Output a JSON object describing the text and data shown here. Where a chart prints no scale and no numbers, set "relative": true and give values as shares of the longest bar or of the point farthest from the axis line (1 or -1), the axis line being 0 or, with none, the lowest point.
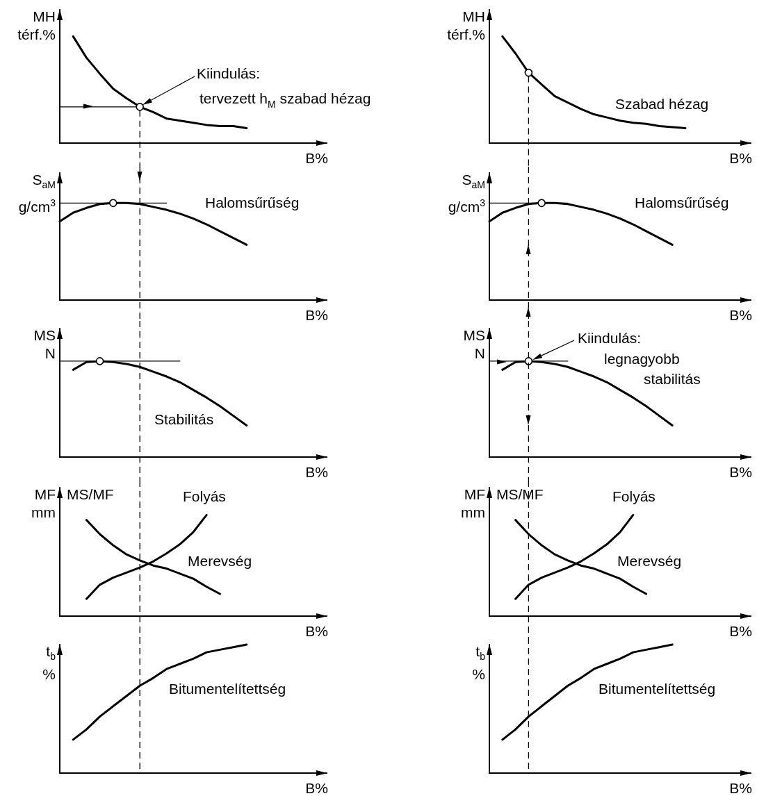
{
  "chart_data": [
    {
      "type": "line",
      "relative": true,
      "tick_labels": false,
      "marker": "none",
      "line_style": "solid",
      "ylabel": "MH\ntérf.%",
      "xlabel": "B%",
      "categories": [
        null,
        null,
        null,
        null,
        null,
        null,
        null,
        null,
        null,
        null,
        null,
        null,
        null,
        null,
        null,
        null,
        null,
        null,
        null,
        null,
        null
      ],
      "annotations": [
        "Kiindulás:",
        "tervezett h$_{M}$ szabad hézag"
      ],
      "series": [
        {
          "color": "#000000",
          "values": [
            null,
            1,
            0.8,
            0.65,
            0.51,
            0.42,
            0.34,
            0.29,
            0.23,
            0.21,
            0.19,
            0.17,
            0.16,
            0.16,
            0.14,
            null,
            null,
            null,
            null,
            null,
            null
          ]
        },
        {
          "color": "#000000",
          "values": [
            0.34,
            0.34,
            0.34,
            0.34,
            0.34,
            0.34,
            0.34,
            null,
            null,
            null,
            null,
            null,
            null,
            null,
            null,
            null,
            null,
            null,
            null,
            null,
            null
          ]
        },
        {
          "marker": "circle",
          "color": "#000000",
          "values": [
            null,
            null,
            null,
            null,
            null,
            null,
            0.34,
            null,
            null,
            null,
            null,
            null,
            null,
            null,
            null,
            null,
            null,
            null,
            null,
            null,
            null
          ]
        }
      ]
    },
    {
      "type": "line",
      "relative": true,
      "tick_labels": false,
      "marker": "none",
      "line_style": "solid",
      "ylabel": "MH\ntérf.%",
      "xlabel": "B%",
      "categories": [
        null,
        null,
        null,
        null,
        null,
        null,
        null,
        null,
        null,
        null,
        null,
        null,
        null,
        null,
        null,
        null,
        null,
        null,
        null,
        null,
        null
      ],
      "series": [
        {
          "name": "Szabad hézag",
          "color": "#000000",
          "values": [
            null,
            1,
            0.84,
            0.66,
            0.55,
            0.44,
            0.38,
            0.32,
            0.27,
            0.24,
            0.21,
            0.19,
            0.18,
            0.16,
            0.15,
            0.14,
            null,
            null,
            null,
            null,
            null
          ]
        },
        {
          "marker": "circle",
          "color": "#000000",
          "values": [
            null,
            null,
            null,
            0.66,
            null,
            null,
            null,
            null,
            null,
            null,
            null,
            null,
            null,
            null,
            null,
            null,
            null,
            null,
            null,
            null,
            null
          ]
        }
      ]
    },
    {
      "type": "line",
      "relative": true,
      "tick_labels": false,
      "marker": "none",
      "line_style": "solid",
      "ylabel": "S$_{aM}$\ng/cm$^{3}$",
      "xlabel": "B%",
      "categories": [
        null,
        null,
        null,
        null,
        null,
        null,
        null,
        null,
        null,
        null,
        null,
        null,
        null,
        null,
        null,
        null,
        null,
        null,
        null,
        null,
        null
      ],
      "series": [
        {
          "name": "Halomsűrűség",
          "color": "#000000",
          "values": [
            0.81,
            0.9,
            0.95,
            0.99,
            1,
            1,
            0.99,
            0.96,
            0.93,
            0.89,
            0.84,
            0.78,
            0.71,
            0.64,
            0.57,
            null,
            null,
            null,
            null,
            null,
            null
          ]
        },
        {
          "color": "#000000",
          "values": [
            1,
            1,
            1,
            1,
            1,
            1,
            1,
            1,
            1,
            null,
            null,
            null,
            null,
            null,
            null,
            null,
            null,
            null,
            null,
            null,
            null
          ]
        },
        {
          "marker": "circle",
          "color": "#000000",
          "values": [
            null,
            null,
            null,
            null,
            1,
            null,
            null,
            null,
            null,
            null,
            null,
            null,
            null,
            null,
            null,
            null,
            null,
            null,
            null,
            null,
            null
          ]
        }
      ]
    },
    {
      "type": "line",
      "relative": true,
      "tick_labels": false,
      "marker": "none",
      "line_style": "solid",
      "ylabel": "S$_{aM}$\ng/cm$^{3}$",
      "xlabel": "B%",
      "categories": [
        null,
        null,
        null,
        null,
        null,
        null,
        null,
        null,
        null,
        null,
        null,
        null,
        null,
        null,
        null,
        null,
        null,
        null,
        null,
        null,
        null
      ],
      "series": [
        {
          "name": "Halomsűrűség",
          "color": "#000000",
          "values": [
            0.81,
            0.9,
            0.95,
            0.99,
            1,
            1,
            0.99,
            0.96,
            0.93,
            0.89,
            0.84,
            0.78,
            0.71,
            0.64,
            0.57,
            null,
            null,
            null,
            null,
            null,
            null
          ]
        },
        {
          "color": "#000000",
          "values": [
            1,
            1,
            1,
            1,
            1,
            1,
            1,
            null,
            null,
            null,
            null,
            null,
            null,
            null,
            null,
            null,
            null,
            null,
            null,
            null,
            null
          ]
        },
        {
          "marker": "circle",
          "color": "#000000",
          "values": [
            null,
            null,
            null,
            null,
            1,
            null,
            null,
            null,
            null,
            null,
            null,
            null,
            null,
            null,
            null,
            null,
            null,
            null,
            null,
            null,
            null
          ]
        }
      ]
    },
    {
      "type": "line",
      "relative": true,
      "tick_labels": false,
      "marker": "none",
      "line_style": "solid",
      "ylabel": "MS\nN",
      "xlabel": "B%",
      "categories": [
        null,
        null,
        null,
        null,
        null,
        null,
        null,
        null,
        null,
        null,
        null,
        null,
        null,
        null,
        null,
        null,
        null,
        null,
        null,
        null,
        null
      ],
      "series": [
        {
          "name": "Stabilitás",
          "color": "#000000",
          "values": [
            null,
            0.91,
            0.99,
            1,
            0.99,
            0.97,
            0.94,
            0.89,
            0.84,
            0.78,
            0.7,
            0.62,
            0.53,
            0.43,
            0.33,
            null,
            null,
            null,
            null,
            null,
            null
          ]
        },
        {
          "color": "#000000",
          "values": [
            1,
            1,
            1,
            1,
            1,
            1,
            1,
            1,
            1,
            1,
            null,
            null,
            null,
            null,
            null,
            null,
            null,
            null,
            null,
            null,
            null
          ]
        },
        {
          "marker": "circle",
          "color": "#000000",
          "values": [
            null,
            null,
            null,
            1,
            null,
            null,
            null,
            null,
            null,
            null,
            null,
            null,
            null,
            null,
            null,
            null,
            null,
            null,
            null,
            null,
            null
          ]
        }
      ]
    },
    {
      "type": "line",
      "relative": true,
      "tick_labels": false,
      "marker": "none",
      "line_style": "solid",
      "ylabel": "MS\nN",
      "xlabel": "B%",
      "categories": [
        null,
        null,
        null,
        null,
        null,
        null,
        null,
        null,
        null,
        null,
        null,
        null,
        null,
        null,
        null,
        null,
        null,
        null,
        null,
        null,
        null
      ],
      "annotations": [
        "Kiindulás:",
        "legnagyobb",
        "stabilitás"
      ],
      "series": [
        {
          "color": "#000000",
          "values": [
            null,
            0.91,
            0.99,
            1,
            0.99,
            0.97,
            0.94,
            0.89,
            0.84,
            0.78,
            0.7,
            0.62,
            0.53,
            0.43,
            0.33,
            null,
            null,
            null,
            null,
            null,
            null
          ]
        },
        {
          "color": "#000000",
          "values": [
            1,
            1,
            1,
            1,
            1,
            1,
            1,
            null,
            null,
            null,
            null,
            null,
            null,
            null,
            null,
            null,
            null,
            null,
            null,
            null,
            null
          ]
        },
        {
          "marker": "circle",
          "color": "#000000",
          "values": [
            null,
            null,
            null,
            1,
            null,
            null,
            null,
            null,
            null,
            null,
            null,
            null,
            null,
            null,
            null,
            null,
            null,
            null,
            null,
            null,
            null
          ]
        }
      ]
    },
    {
      "type": "line",
      "relative": true,
      "tick_labels": false,
      "marker": "none",
      "line_style": "solid",
      "ylabel": "MF\nmm",
      "xlabel": "B%",
      "categories": [
        null,
        null,
        null,
        null,
        null,
        null,
        null,
        null,
        null,
        null,
        null,
        null,
        null,
        null,
        null,
        null,
        null,
        null,
        null,
        null,
        null
      ],
      "annotations": [
        "MS/MF"
      ],
      "series": [
        {
          "name": "Folyás",
          "color": "#000000",
          "values": [
            null,
            null,
            0.17,
            0.31,
            0.38,
            0.43,
            0.48,
            0.54,
            0.62,
            0.71,
            0.83,
            1,
            null,
            null,
            null,
            null,
            null,
            null,
            null,
            null,
            null
          ]
        },
        {
          "name": "Merevség",
          "color": "#000000",
          "values": [
            null,
            null,
            0.95,
            0.81,
            0.7,
            0.61,
            0.55,
            0.5,
            0.47,
            0.42,
            0.37,
            0.29,
            0.22,
            null,
            null,
            null,
            null,
            null,
            null,
            null,
            null
          ]
        }
      ]
    },
    {
      "type": "line",
      "relative": true,
      "tick_labels": false,
      "marker": "none",
      "line_style": "solid",
      "ylabel": "MF\nmm",
      "xlabel": "B%",
      "categories": [
        null,
        null,
        null,
        null,
        null,
        null,
        null,
        null,
        null,
        null,
        null,
        null,
        null,
        null,
        null,
        null,
        null,
        null,
        null,
        null,
        null
      ],
      "annotations": [
        "MS/MF"
      ],
      "series": [
        {
          "name": "Folyás",
          "color": "#000000",
          "values": [
            null,
            null,
            0.17,
            0.31,
            0.38,
            0.43,
            0.48,
            0.54,
            0.62,
            0.71,
            0.83,
            1,
            null,
            null,
            null,
            null,
            null,
            null,
            null,
            null,
            null
          ]
        },
        {
          "name": "Merevség",
          "color": "#000000",
          "values": [
            null,
            null,
            0.95,
            0.81,
            0.7,
            0.61,
            0.55,
            0.5,
            0.47,
            0.42,
            0.37,
            0.29,
            0.22,
            null,
            null,
            null,
            null,
            null,
            null,
            null,
            null
          ]
        }
      ]
    },
    {
      "type": "line",
      "relative": true,
      "tick_labels": false,
      "marker": "none",
      "line_style": "solid",
      "ylabel": "t$_{b}$\n%",
      "xlabel": "B%",
      "categories": [
        null,
        null,
        null,
        null,
        null,
        null,
        null,
        null,
        null,
        null,
        null,
        null,
        null,
        null,
        null,
        null,
        null,
        null,
        null,
        null,
        null
      ],
      "series": [
        {
          "name": "Bitumentelítettség",
          "color": "#000000",
          "values": [
            null,
            0.26,
            0.34,
            0.44,
            0.52,
            0.6,
            0.68,
            0.74,
            0.81,
            0.85,
            0.89,
            0.94,
            0.96,
            0.98,
            1,
            null,
            null,
            null,
            null,
            null,
            null
          ]
        }
      ]
    },
    {
      "type": "line",
      "relative": true,
      "tick_labels": false,
      "marker": "none",
      "line_style": "solid",
      "ylabel": "t$_{b}$\n%",
      "xlabel": "B%",
      "categories": [
        null,
        null,
        null,
        null,
        null,
        null,
        null,
        null,
        null,
        null,
        null,
        null,
        null,
        null,
        null,
        null,
        null,
        null,
        null,
        null,
        null
      ],
      "series": [
        {
          "name": "Bitumentelítettség",
          "color": "#000000",
          "values": [
            null,
            0.26,
            0.34,
            0.44,
            0.52,
            0.6,
            0.68,
            0.74,
            0.81,
            0.85,
            0.89,
            0.94,
            0.96,
            0.98,
            1,
            null,
            null,
            null,
            null,
            null,
            null
          ]
        }
      ]
    }
  ]
}
